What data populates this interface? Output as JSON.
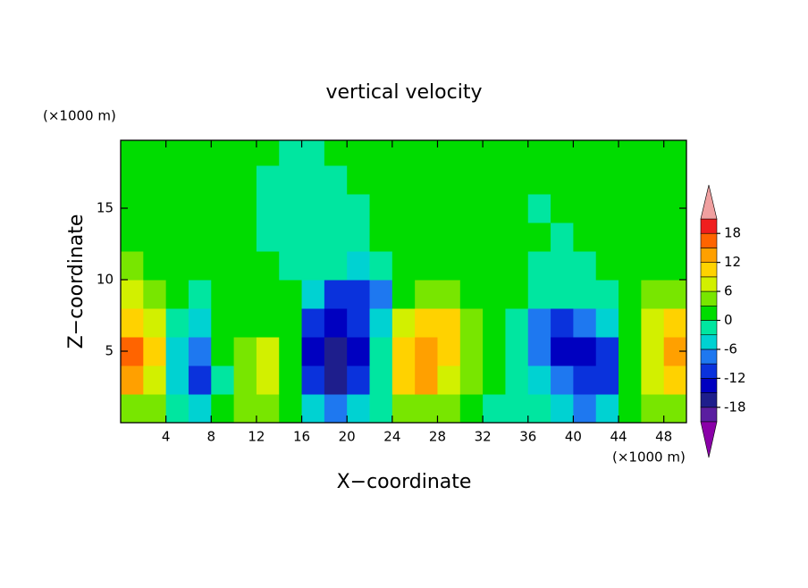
{
  "chart_data": {
    "type": "contour",
    "title": "vertical velocity",
    "x_label": "X−coordinate",
    "y_label": "Z−coordinate",
    "x_unit": "(×1000 m)",
    "y_unit": "(×1000 m)",
    "xlim": [
      0,
      50
    ],
    "ylim": [
      0,
      19.75
    ],
    "xticks": [
      4,
      8,
      12,
      16,
      20,
      24,
      28,
      32,
      36,
      40,
      44,
      48
    ],
    "yticks": [
      5,
      10,
      15
    ],
    "x": [
      1,
      3,
      5,
      7,
      9,
      11,
      13,
      15,
      17,
      19,
      21,
      23,
      25,
      27,
      29,
      31,
      33,
      35,
      37,
      39,
      41,
      43,
      45,
      47,
      49
    ],
    "z": [
      1,
      3,
      5,
      7,
      9,
      11,
      13,
      15,
      17,
      19
    ],
    "values": [
      [
        4,
        3,
        -2,
        -6,
        2,
        3,
        3,
        1,
        -6,
        -9,
        -6,
        -2,
        3,
        4,
        3,
        1,
        -2,
        -3,
        -2,
        -6,
        -9,
        -6,
        1,
        3,
        4
      ],
      [
        12,
        8,
        -6,
        -12,
        -1,
        5,
        7,
        2,
        -12,
        -18,
        -12,
        -3,
        10,
        14,
        8,
        3,
        1,
        -3,
        -6,
        -9,
        -12,
        -12,
        1,
        6,
        9
      ],
      [
        15,
        9,
        -6,
        -9,
        1,
        4,
        8,
        2,
        -15,
        -18,
        -15,
        -3,
        10,
        14,
        9,
        4,
        1,
        -2,
        -9,
        -14,
        -15,
        -12,
        0,
        8,
        12
      ],
      [
        10,
        6,
        -3,
        -6,
        1,
        2,
        2,
        1,
        -12,
        -15,
        -12,
        -6,
        6,
        9,
        9,
        4,
        1,
        -2,
        -9,
        -12,
        -9,
        -6,
        1,
        6,
        9
      ],
      [
        6,
        3,
        0,
        -2,
        1,
        1,
        0,
        0,
        -6,
        -12,
        -12,
        -9,
        2,
        4,
        4,
        2,
        1,
        0,
        -3,
        -3,
        -3,
        -3,
        1,
        3,
        5
      ],
      [
        3,
        2,
        1,
        0,
        1,
        1,
        0,
        -2,
        -2,
        -3,
        -6,
        -3,
        1,
        1,
        2,
        1,
        1,
        0,
        -1,
        -2,
        -2,
        1,
        1,
        2,
        2
      ],
      [
        2,
        2,
        1,
        1,
        1,
        0,
        -1,
        -2,
        -2,
        -2,
        -2,
        0,
        1,
        1,
        1,
        1,
        1,
        1,
        0,
        -2,
        1,
        1,
        1,
        1,
        1
      ],
      [
        1,
        1,
        1,
        1,
        1,
        0,
        -2,
        -3,
        -3,
        -2,
        -1,
        1,
        1,
        1,
        1,
        1,
        1,
        0,
        -1,
        1,
        1,
        1,
        1,
        1,
        1
      ],
      [
        1,
        1,
        2,
        1,
        1,
        1,
        -1,
        -2,
        -2,
        -1,
        1,
        2,
        2,
        1,
        1,
        1,
        1,
        1,
        0,
        1,
        1,
        1,
        1,
        1,
        1
      ],
      [
        1,
        1,
        1,
        1,
        0,
        1,
        0,
        -1,
        -1,
        0,
        1,
        2,
        2,
        1,
        1,
        0,
        1,
        1,
        1,
        1,
        1,
        1,
        1,
        1,
        1
      ]
    ],
    "colorbar": {
      "levels": [
        -21,
        -18,
        -15,
        -12,
        -9,
        -6,
        -3,
        0,
        3,
        6,
        9,
        12,
        15,
        18,
        21
      ],
      "colors": [
        "#8a00a8",
        "#5a1ea0",
        "#1e1e8c",
        "#0000c0",
        "#0a32dc",
        "#1e78f0",
        "#00d2d2",
        "#00e6a0",
        "#00dc00",
        "#78e600",
        "#d2f000",
        "#ffd200",
        "#ffa000",
        "#ff6400",
        "#f01e1e",
        "#f0a0a0"
      ],
      "ticks": [
        -18,
        -12,
        -6,
        0,
        6,
        12,
        18
      ]
    }
  }
}
